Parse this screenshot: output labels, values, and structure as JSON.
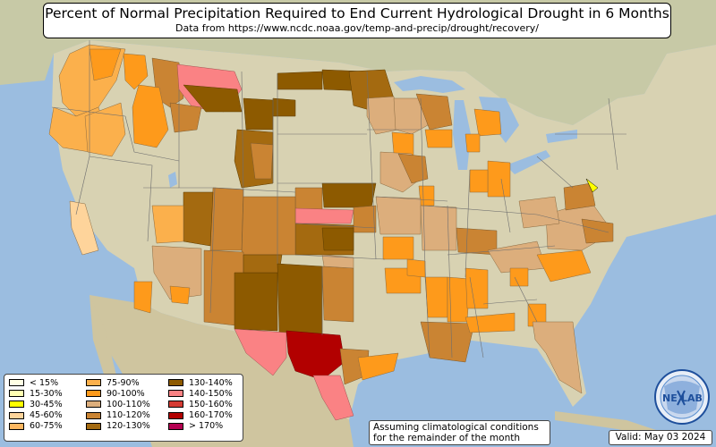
{
  "title": "Percent of Normal Precipitation Required to End Current Hydrological Drought in 6 Months",
  "subtitle": "Data from https://www.ncdc.noaa.gov/temp-and-precip/drought/recovery/",
  "note_line1": "Assuming climatological conditions",
  "note_line2": "for the remainder of the month",
  "valid": "Valid: May 03 2024",
  "logo": {
    "text_left": "NE",
    "text_right": "LAB",
    "colors": [
      "#1e4f9c",
      "#5a8fd0",
      "#ffffff"
    ]
  },
  "legend": [
    {
      "label": "< 15%",
      "color": "#ffffe5"
    },
    {
      "label": "15-30%",
      "color": "#ffffb2"
    },
    {
      "label": "30-45%",
      "color": "#ffff00"
    },
    {
      "label": "45-60%",
      "color": "#fed49b"
    },
    {
      "label": "60-75%",
      "color": "#fdb760"
    },
    {
      "label": "75-90%",
      "color": "#fbb04c"
    },
    {
      "label": "90-100%",
      "color": "#fe9a1b"
    },
    {
      "label": "100-110%",
      "color": "#dcae7c"
    },
    {
      "label": "110-120%",
      "color": "#ca8433"
    },
    {
      "label": "120-130%",
      "color": "#a46a10"
    },
    {
      "label": "130-140%",
      "color": "#8d5a00"
    },
    {
      "label": "140-150%",
      "color": "#fa8284"
    },
    {
      "label": "150-160%",
      "color": "#d43b33"
    },
    {
      "label": "160-170%",
      "color": "#b20000"
    },
    {
      "label": "> 170%",
      "color": "#b40051"
    }
  ]
}
